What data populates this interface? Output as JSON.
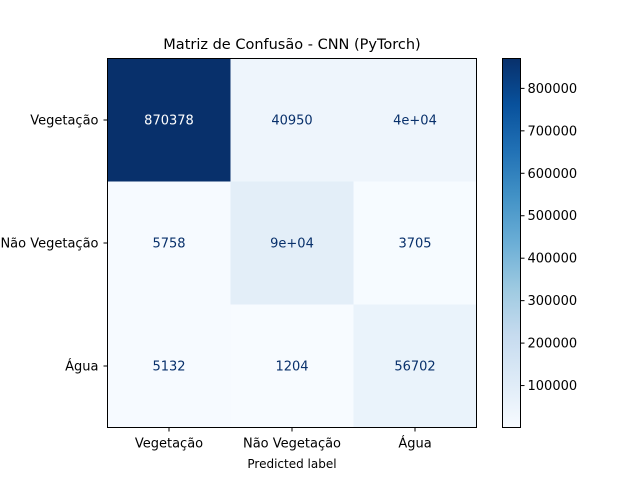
{
  "chart_data": {
    "type": "heatmap",
    "title": "Matriz de Confusão - CNN (PyTorch)",
    "xlabel": "Predicted label",
    "ylabel": "",
    "x_categories": [
      "Vegetação",
      "Não Vegetação",
      "Água"
    ],
    "y_categories": [
      "Vegetação",
      "Não Vegetação",
      "Água"
    ],
    "values": [
      [
        870378,
        40950,
        40000
      ],
      [
        5758,
        90000,
        3705
      ],
      [
        5132,
        1204,
        56702
      ]
    ],
    "cell_labels": [
      [
        "870378",
        "40950",
        "4e+04"
      ],
      [
        "5758",
        "9e+04",
        "3705"
      ],
      [
        "5132",
        "1204",
        "56702"
      ]
    ],
    "colormap": "Blues",
    "colorbar": {
      "range": [
        1204,
        870378
      ],
      "ticks": [
        100000,
        200000,
        300000,
        400000,
        500000,
        600000,
        700000,
        800000
      ],
      "tick_labels": [
        "100000",
        "200000",
        "300000",
        "400000",
        "500000",
        "600000",
        "700000",
        "800000"
      ]
    }
  }
}
